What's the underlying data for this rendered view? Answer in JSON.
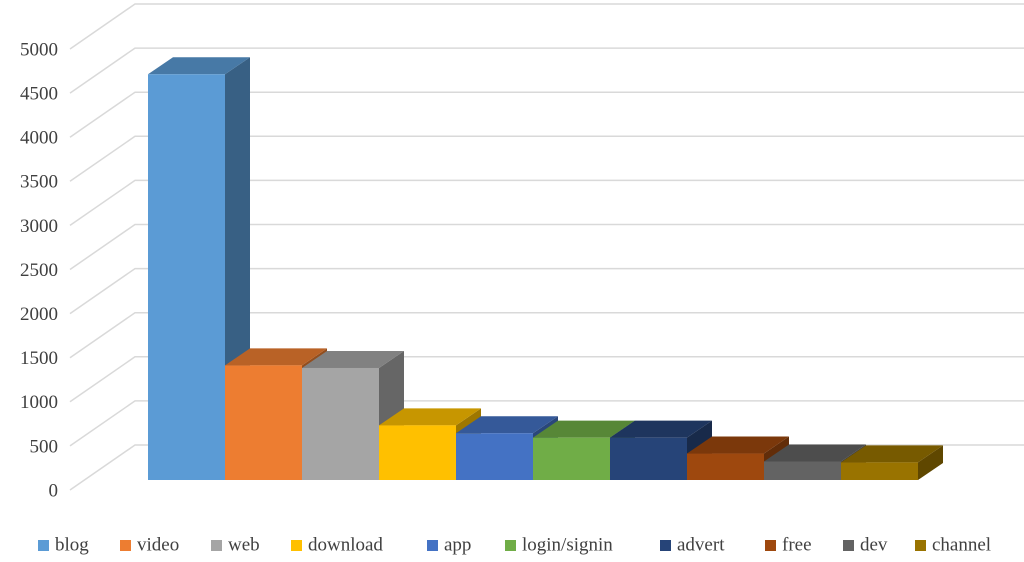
{
  "chart_data": {
    "type": "bar3d",
    "categories": [
      "blog",
      "video",
      "web",
      "download",
      "app",
      "login/signin",
      "advert",
      "free",
      "dev",
      "channel"
    ],
    "values": [
      4600,
      1300,
      1270,
      620,
      530,
      480,
      480,
      300,
      210,
      200
    ],
    "colors": [
      "#5b9bd5",
      "#ed7d31",
      "#a5a5a5",
      "#ffc000",
      "#4472c4",
      "#70ad47",
      "#264478",
      "#9e480e",
      "#636363",
      "#997300"
    ],
    "ylim": [
      0,
      5000
    ],
    "yticks": [
      0,
      500,
      1000,
      1500,
      2000,
      2500,
      3000,
      3500,
      4000,
      4500,
      5000
    ],
    "grid": true,
    "legend": "bottom"
  }
}
